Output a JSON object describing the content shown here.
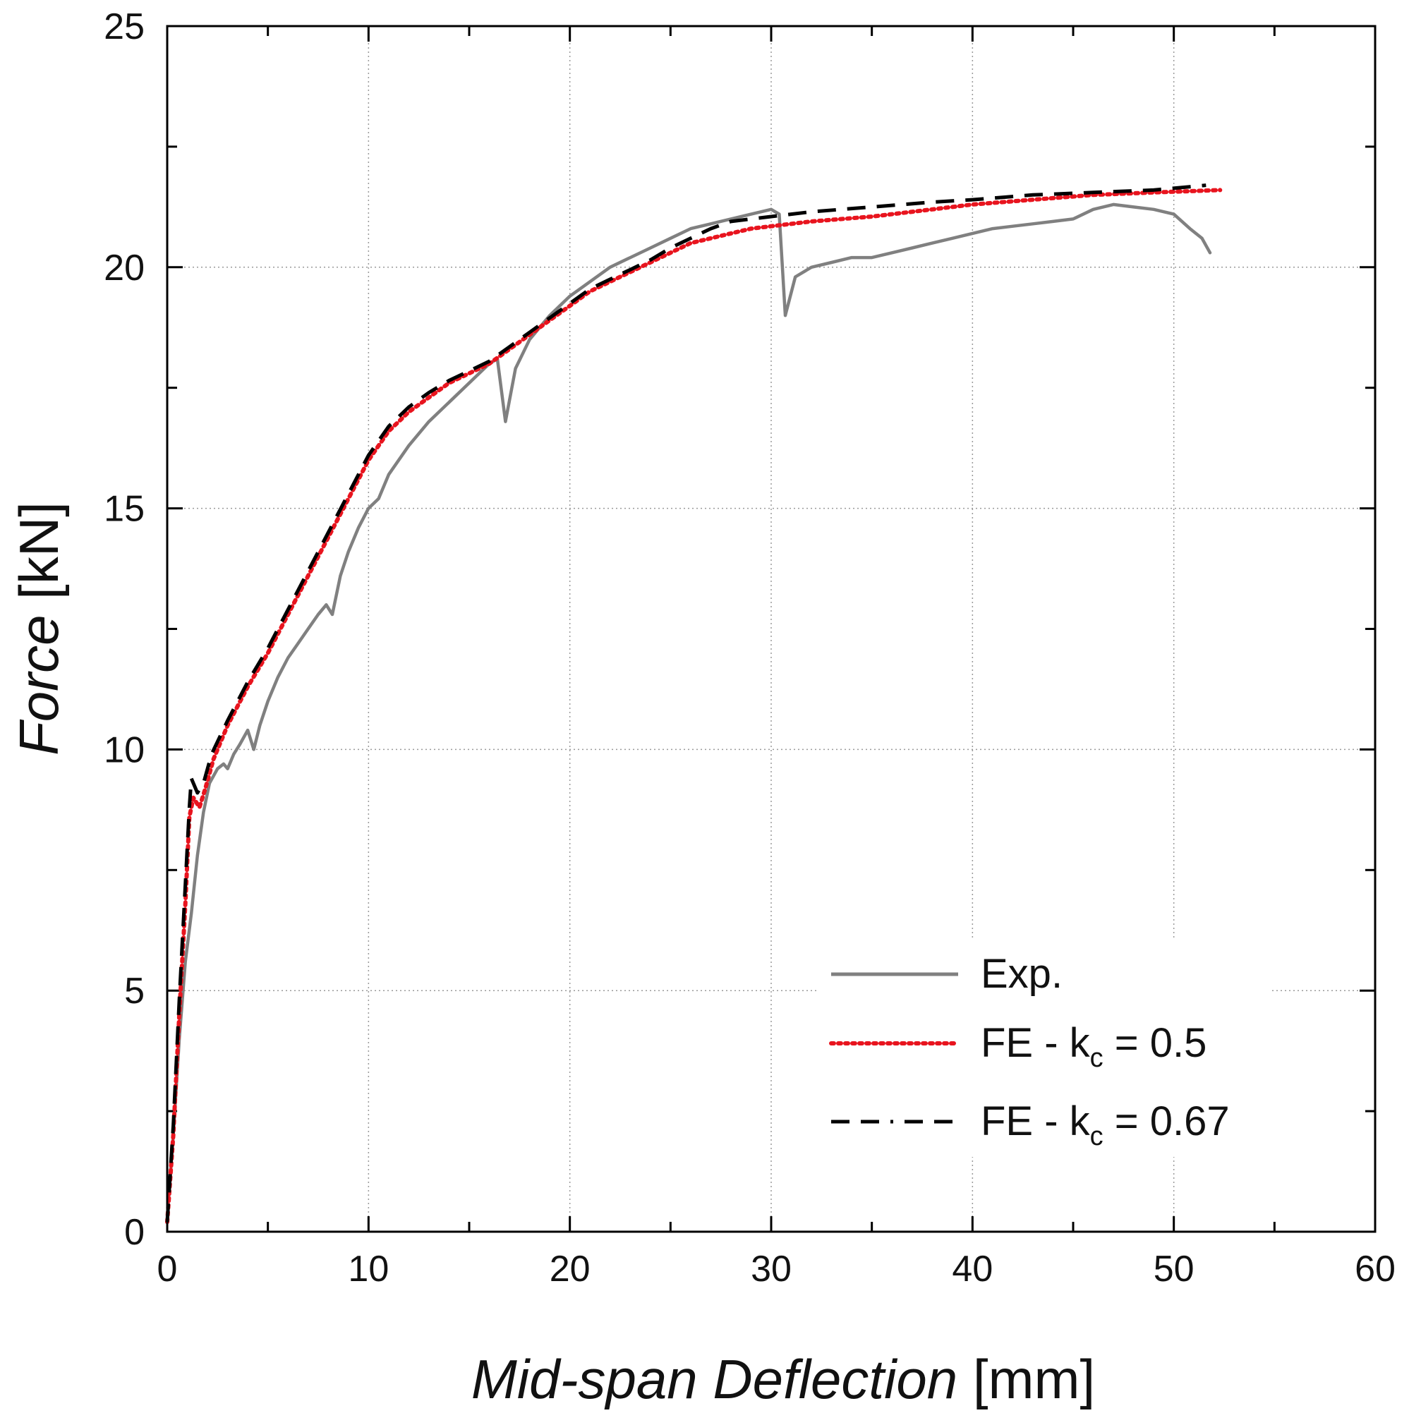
{
  "chart_data": {
    "type": "line",
    "title": "",
    "xlabel": {
      "italic": "Mid-span Deflection",
      "unit": "[mm]"
    },
    "ylabel": {
      "italic": "Force",
      "unit": "[kN]"
    },
    "xlim": [
      0,
      60
    ],
    "ylim": [
      0,
      25
    ],
    "xticks": [
      0,
      10,
      20,
      30,
      40,
      50,
      60
    ],
    "yticks": [
      0,
      5,
      10,
      15,
      20,
      25
    ],
    "grid": true,
    "legend_position": "bottom-right",
    "series": [
      {
        "name": "Exp.",
        "legend_main": "Exp.",
        "legend_sub": "",
        "legend_tail": "",
        "color": "#808080",
        "style": "solid",
        "points": [
          [
            0,
            0.3
          ],
          [
            0.3,
            2.0
          ],
          [
            0.6,
            4.0
          ],
          [
            0.9,
            5.6
          ],
          [
            1.2,
            6.6
          ],
          [
            1.5,
            7.8
          ],
          [
            1.8,
            8.7
          ],
          [
            2.1,
            9.3
          ],
          [
            2.5,
            9.6
          ],
          [
            2.8,
            9.7
          ],
          [
            3.0,
            9.6
          ],
          [
            3.3,
            9.9
          ],
          [
            3.6,
            10.1
          ],
          [
            4.0,
            10.4
          ],
          [
            4.3,
            10.0
          ],
          [
            4.6,
            10.5
          ],
          [
            5.0,
            11.0
          ],
          [
            5.5,
            11.5
          ],
          [
            6.0,
            11.9
          ],
          [
            6.5,
            12.2
          ],
          [
            7.0,
            12.5
          ],
          [
            7.5,
            12.8
          ],
          [
            7.9,
            13.0
          ],
          [
            8.2,
            12.8
          ],
          [
            8.6,
            13.6
          ],
          [
            9.0,
            14.1
          ],
          [
            9.5,
            14.6
          ],
          [
            10.0,
            15.0
          ],
          [
            10.5,
            15.2
          ],
          [
            11.0,
            15.7
          ],
          [
            12.0,
            16.3
          ],
          [
            13.0,
            16.8
          ],
          [
            14.0,
            17.2
          ],
          [
            15.0,
            17.6
          ],
          [
            16.0,
            18.0
          ],
          [
            16.4,
            18.1
          ],
          [
            16.8,
            16.8
          ],
          [
            17.3,
            17.9
          ],
          [
            18.0,
            18.5
          ],
          [
            19.0,
            19.0
          ],
          [
            20.0,
            19.4
          ],
          [
            21.0,
            19.7
          ],
          [
            22.0,
            20.0
          ],
          [
            23.0,
            20.2
          ],
          [
            24.0,
            20.4
          ],
          [
            25.0,
            20.6
          ],
          [
            26.0,
            20.8
          ],
          [
            27.0,
            20.9
          ],
          [
            28.0,
            21.0
          ],
          [
            29.0,
            21.1
          ],
          [
            30.0,
            21.2
          ],
          [
            30.4,
            21.1
          ],
          [
            30.7,
            19.0
          ],
          [
            31.2,
            19.8
          ],
          [
            32.0,
            20.0
          ],
          [
            33.0,
            20.1
          ],
          [
            34.0,
            20.2
          ],
          [
            35.0,
            20.2
          ],
          [
            36.0,
            20.3
          ],
          [
            37.0,
            20.4
          ],
          [
            38.0,
            20.5
          ],
          [
            39.0,
            20.6
          ],
          [
            40.0,
            20.7
          ],
          [
            41.0,
            20.8
          ],
          [
            42.0,
            20.85
          ],
          [
            43.0,
            20.9
          ],
          [
            44.0,
            20.95
          ],
          [
            45.0,
            21.0
          ],
          [
            46.0,
            21.2
          ],
          [
            47.0,
            21.3
          ],
          [
            48.0,
            21.25
          ],
          [
            49.0,
            21.2
          ],
          [
            50.0,
            21.1
          ],
          [
            50.8,
            20.8
          ],
          [
            51.4,
            20.6
          ],
          [
            51.8,
            20.3
          ]
        ]
      },
      {
        "name": "FE - kc = 0.5",
        "legend_main": "FE - k",
        "legend_sub": "c",
        "legend_tail": " = 0.5",
        "color": "#e8141e",
        "style": "dotted",
        "points": [
          [
            0,
            0.2
          ],
          [
            0.3,
            2.0
          ],
          [
            0.6,
            4.5
          ],
          [
            0.9,
            6.8
          ],
          [
            1.1,
            8.6
          ],
          [
            1.3,
            9.0
          ],
          [
            1.6,
            8.8
          ],
          [
            1.9,
            9.2
          ],
          [
            2.3,
            9.8
          ],
          [
            3.0,
            10.5
          ],
          [
            4.0,
            11.3
          ],
          [
            5.0,
            12.0
          ],
          [
            6.0,
            12.8
          ],
          [
            7.0,
            13.6
          ],
          [
            8.0,
            14.4
          ],
          [
            9.0,
            15.2
          ],
          [
            10.0,
            16.0
          ],
          [
            11.0,
            16.6
          ],
          [
            12.0,
            17.0
          ],
          [
            13.0,
            17.3
          ],
          [
            14.0,
            17.6
          ],
          [
            15.0,
            17.8
          ],
          [
            16.0,
            18.0
          ],
          [
            17.0,
            18.3
          ],
          [
            18.0,
            18.6
          ],
          [
            19.0,
            18.9
          ],
          [
            20.0,
            19.2
          ],
          [
            21.0,
            19.5
          ],
          [
            22.0,
            19.7
          ],
          [
            23.0,
            19.9
          ],
          [
            24.0,
            20.1
          ],
          [
            25.0,
            20.3
          ],
          [
            26.0,
            20.5
          ],
          [
            27.0,
            20.6
          ],
          [
            28.0,
            20.7
          ],
          [
            29.0,
            20.8
          ],
          [
            30.0,
            20.85
          ],
          [
            32.0,
            20.95
          ],
          [
            35.0,
            21.05
          ],
          [
            38.0,
            21.2
          ],
          [
            40.0,
            21.3
          ],
          [
            43.0,
            21.4
          ],
          [
            46.0,
            21.5
          ],
          [
            49.0,
            21.55
          ],
          [
            52.3,
            21.6
          ]
        ]
      },
      {
        "name": "FE - kc = 0.67",
        "legend_main": "FE - k",
        "legend_sub": "c",
        "legend_tail": " = 0.67",
        "color": "#000000",
        "style": "dashed",
        "points": [
          [
            0,
            0.2
          ],
          [
            0.3,
            2.2
          ],
          [
            0.6,
            4.8
          ],
          [
            0.9,
            7.2
          ],
          [
            1.1,
            8.8
          ],
          [
            1.2,
            9.4
          ],
          [
            1.5,
            9.1
          ],
          [
            1.8,
            9.3
          ],
          [
            2.2,
            9.9
          ],
          [
            3.0,
            10.6
          ],
          [
            4.0,
            11.4
          ],
          [
            5.0,
            12.1
          ],
          [
            6.0,
            12.9
          ],
          [
            7.0,
            13.7
          ],
          [
            8.0,
            14.5
          ],
          [
            9.0,
            15.3
          ],
          [
            10.0,
            16.1
          ],
          [
            11.0,
            16.7
          ],
          [
            12.0,
            17.1
          ],
          [
            13.0,
            17.4
          ],
          [
            14.0,
            17.65
          ],
          [
            15.0,
            17.85
          ],
          [
            16.0,
            18.05
          ],
          [
            17.0,
            18.35
          ],
          [
            18.0,
            18.65
          ],
          [
            19.0,
            18.95
          ],
          [
            20.0,
            19.25
          ],
          [
            21.0,
            19.55
          ],
          [
            22.0,
            19.75
          ],
          [
            23.0,
            19.95
          ],
          [
            24.0,
            20.15
          ],
          [
            25.0,
            20.4
          ],
          [
            26.0,
            20.6
          ],
          [
            27.0,
            20.8
          ],
          [
            28.0,
            20.95
          ],
          [
            29.0,
            21.0
          ],
          [
            30.0,
            21.05
          ],
          [
            32.0,
            21.15
          ],
          [
            35.0,
            21.25
          ],
          [
            38.0,
            21.35
          ],
          [
            40.0,
            21.4
          ],
          [
            43.0,
            21.5
          ],
          [
            46.0,
            21.55
          ],
          [
            49.0,
            21.6
          ],
          [
            51.6,
            21.7
          ]
        ]
      }
    ]
  }
}
